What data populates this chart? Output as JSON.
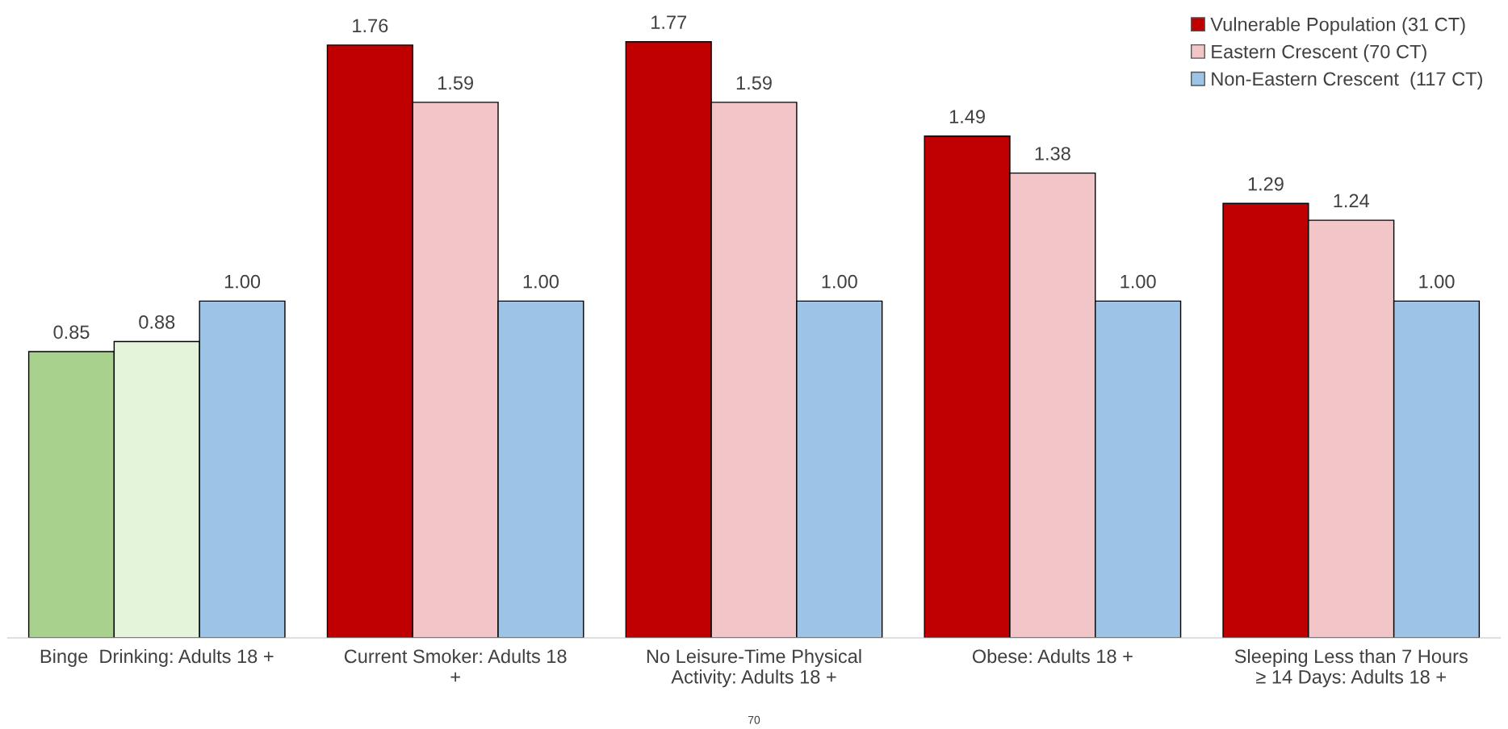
{
  "chart_data": {
    "type": "bar",
    "categories": [
      "Binge  Drinking: Adults 18 +",
      "Current Smoker: Adults 18\n+",
      "No Leisure-Time Physical\nActivity: Adults 18 +",
      "Obese: Adults 18 +",
      "Sleeping Less than 7 Hours\n≥ 14 Days: Adults 18 +"
    ],
    "series": [
      {
        "name": "Vulnerable Population (31 CT)",
        "color": "#c00000",
        "colors": [
          "#a9d18e",
          "#c00000",
          "#c00000",
          "#c00000",
          "#c00000"
        ],
        "values": [
          0.85,
          1.76,
          1.77,
          1.49,
          1.29
        ],
        "value_labels": [
          "0.85",
          "1.76",
          "1.77",
          "1.49",
          "1.29"
        ]
      },
      {
        "name": "Eastern Crescent (70 CT)",
        "color": "#f2c6c8",
        "colors": [
          "#e4f4da",
          "#f2c6c8",
          "#f2c6c8",
          "#f2c6c8",
          "#f2c6c8"
        ],
        "values": [
          0.88,
          1.59,
          1.59,
          1.38,
          1.24
        ],
        "value_labels": [
          "0.88",
          "1.59",
          "1.59",
          "1.38",
          "1.24"
        ]
      },
      {
        "name": "Non-Eastern Crescent  (117 CT)",
        "color": "#9dc3e6",
        "values": [
          1.0,
          1.0,
          1.0,
          1.0,
          1.0
        ],
        "value_labels": [
          "1.00",
          "1.00",
          "1.00",
          "1.00",
          "1.00"
        ]
      }
    ],
    "tick_labels": "x",
    "legend": "top right",
    "grid": false,
    "annotations": [
      "70"
    ]
  }
}
